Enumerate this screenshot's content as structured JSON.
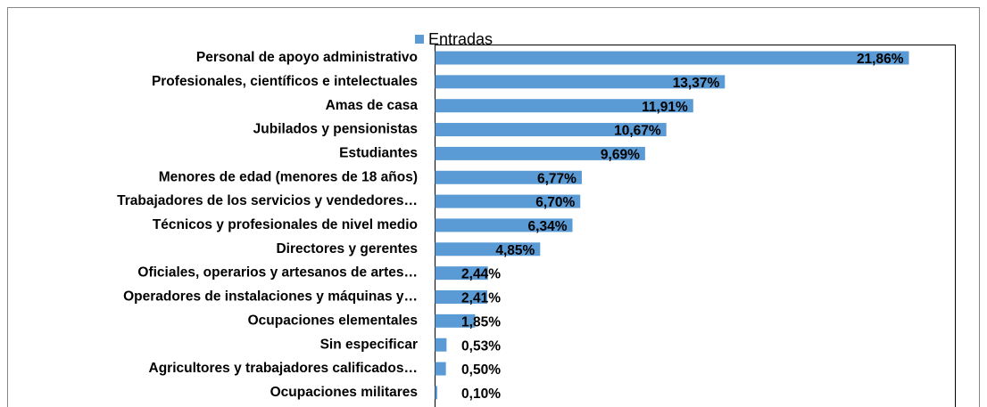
{
  "chart_data": {
    "type": "bar",
    "orientation": "horizontal",
    "categories": [
      "Personal de apoyo administrativo",
      "Profesionales, científicos e intelectuales",
      "Amas de casa",
      "Jubilados y pensionistas",
      "Estudiantes",
      "Menores de edad (menores de  18 años)",
      "Trabajadores de los servicios y vendedores…",
      "Técnicos y profesionales de nivel medio",
      "Directores y gerentes",
      "Oficiales, operarios y artesanos de artes…",
      "Operadores de instalaciones y máquinas y…",
      "Ocupaciones elementales",
      "Sin especificar",
      "Agricultores y trabajadores calificados…",
      "Ocupaciones militares"
    ],
    "series": [
      {
        "name": "Entradas",
        "color": "#5b9bd5",
        "values": [
          21.86,
          13.37,
          11.91,
          10.67,
          9.69,
          6.77,
          6.7,
          6.34,
          4.85,
          2.44,
          2.41,
          1.85,
          0.53,
          0.5,
          0.1
        ],
        "value_labels": [
          "21,86%",
          "13,37%",
          "11,91%",
          "10,67%",
          "9,69%",
          "6,77%",
          "6,70%",
          "6,34%",
          "4,85%",
          "2,44%",
          "2,41%",
          "1,85%",
          "0,53%",
          "0,50%",
          "0,10%"
        ]
      }
    ],
    "xlim": [
      0,
      24
    ],
    "legend": "top"
  }
}
